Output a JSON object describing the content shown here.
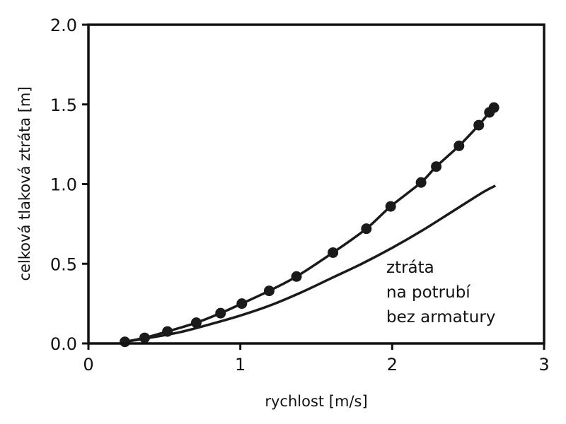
{
  "chart_data": {
    "type": "line",
    "title": "",
    "xlabel": "rychlost [m/s]",
    "ylabel": "celková tlaková ztráta [m]",
    "xlim": [
      0,
      3
    ],
    "ylim": [
      0.0,
      2.0
    ],
    "x_ticks": [
      0,
      1,
      2,
      3
    ],
    "x_tick_labels": [
      "0",
      "1",
      "2",
      "3"
    ],
    "y_ticks": [
      0.0,
      0.5,
      1.0,
      1.5,
      2.0
    ],
    "y_tick_labels": [
      "0.0",
      "0.5",
      "1.0",
      "1.5",
      "2.0"
    ],
    "grid": false,
    "annotation": [
      "ztráta",
      "na potrubí",
      "bez armatury"
    ],
    "series": [
      {
        "style": "line-markers",
        "color": "#1a1a1a",
        "x": [
          0.24,
          0.37,
          0.52,
          0.71,
          0.87,
          1.01,
          1.19,
          1.37,
          1.61,
          1.83,
          1.99,
          2.19,
          2.29,
          2.44,
          2.57,
          2.64,
          2.67
        ],
        "y": [
          0.01,
          0.035,
          0.075,
          0.13,
          0.19,
          0.25,
          0.33,
          0.42,
          0.57,
          0.72,
          0.86,
          1.01,
          1.11,
          1.24,
          1.37,
          1.45,
          1.48
        ]
      },
      {
        "style": "line",
        "color": "#1a1a1a",
        "x": [
          0.24,
          0.4,
          0.6,
          0.8,
          1.0,
          1.2,
          1.4,
          1.6,
          1.8,
          2.0,
          2.2,
          2.4,
          2.6,
          2.68
        ],
        "y": [
          0.01,
          0.035,
          0.07,
          0.12,
          0.175,
          0.24,
          0.32,
          0.41,
          0.5,
          0.6,
          0.71,
          0.83,
          0.95,
          0.99
        ]
      }
    ]
  }
}
